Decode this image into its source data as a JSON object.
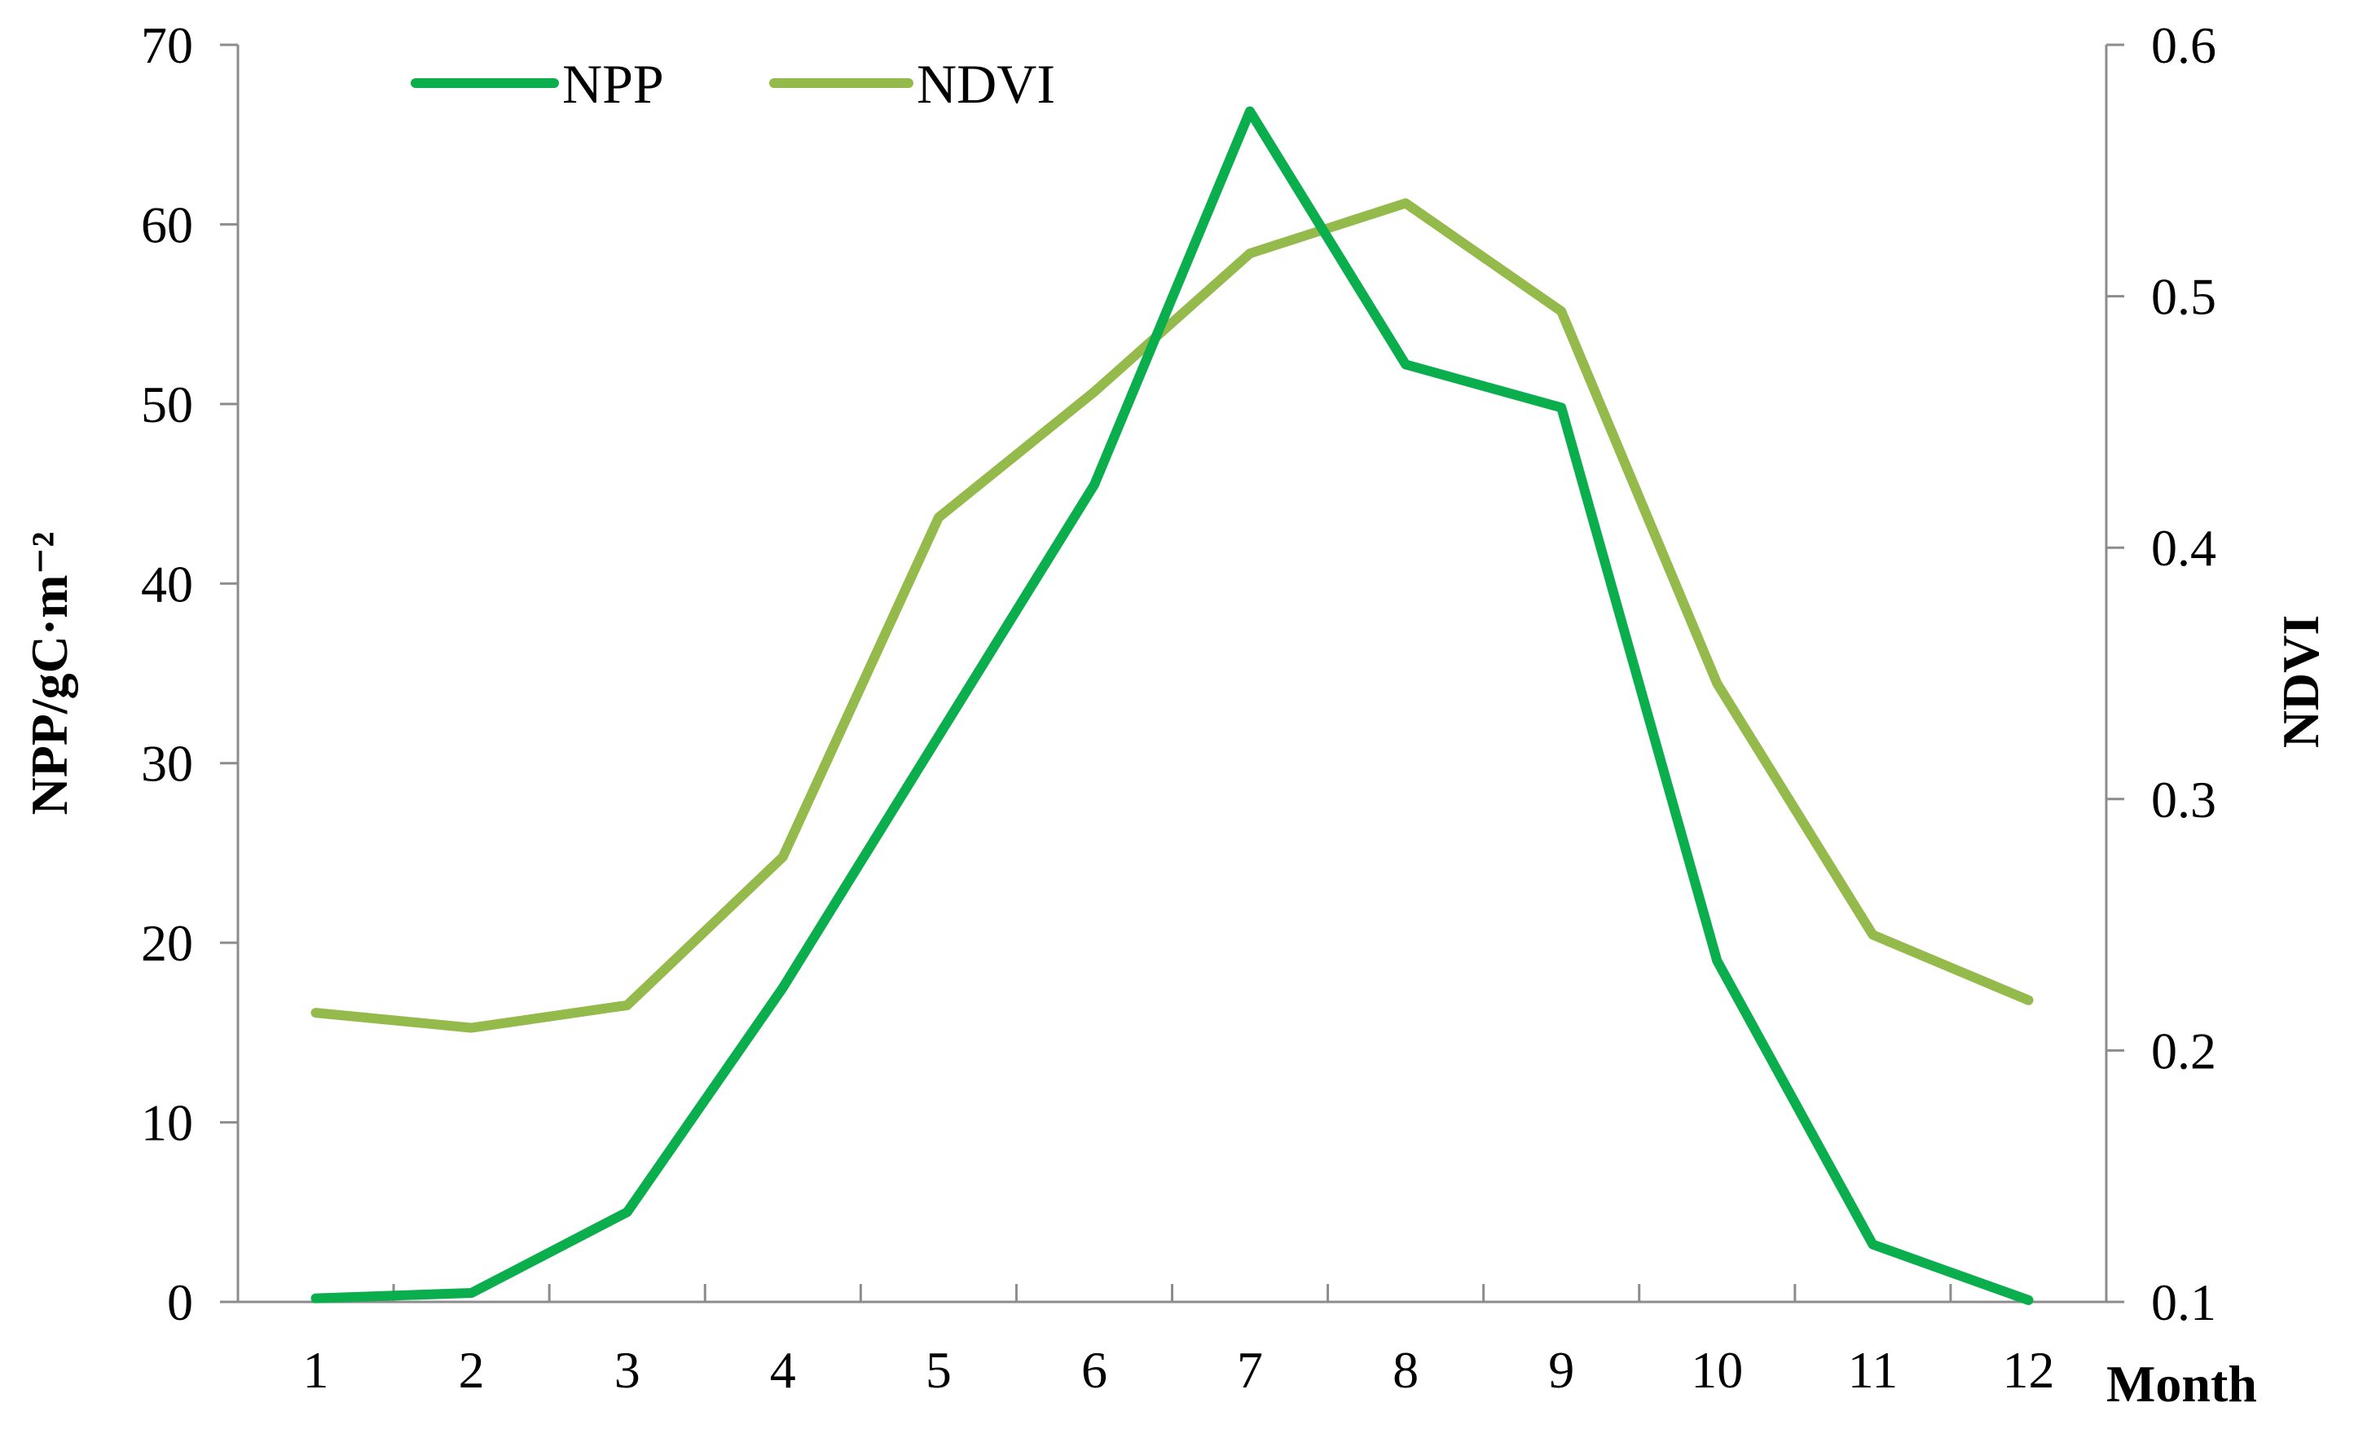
{
  "chart_data": {
    "type": "line",
    "categories": [
      "1",
      "2",
      "3",
      "4",
      "5",
      "6",
      "7",
      "8",
      "9",
      "10",
      "11",
      "12"
    ],
    "series": [
      {
        "name": "NPP",
        "axis": "left",
        "color": "#0BAE4C",
        "values": [
          0.2,
          0.5,
          5.0,
          17.5,
          31.5,
          45.5,
          66.3,
          52.2,
          49.8,
          19.0,
          3.2,
          0.1
        ]
      },
      {
        "name": "NDVI",
        "axis": "right",
        "color": "#93BA4B",
        "values": [
          0.215,
          0.209,
          0.218,
          0.277,
          0.412,
          0.462,
          0.517,
          0.537,
          0.494,
          0.346,
          0.246,
          0.22
        ]
      }
    ],
    "ylabel": "NPP/gC·m⁻²",
    "y2label": "NDVI",
    "xlabel": "Month",
    "ylim": [
      0,
      70
    ],
    "y2lim": [
      0.1,
      0.6
    ],
    "yticks": [
      "0",
      "10",
      "20",
      "30",
      "40",
      "50",
      "60",
      "70"
    ],
    "y2ticks": [
      "0.1",
      "0.2",
      "0.3",
      "0.4",
      "0.5",
      "0.6"
    ],
    "grid": false,
    "legend_position": "top-left"
  }
}
